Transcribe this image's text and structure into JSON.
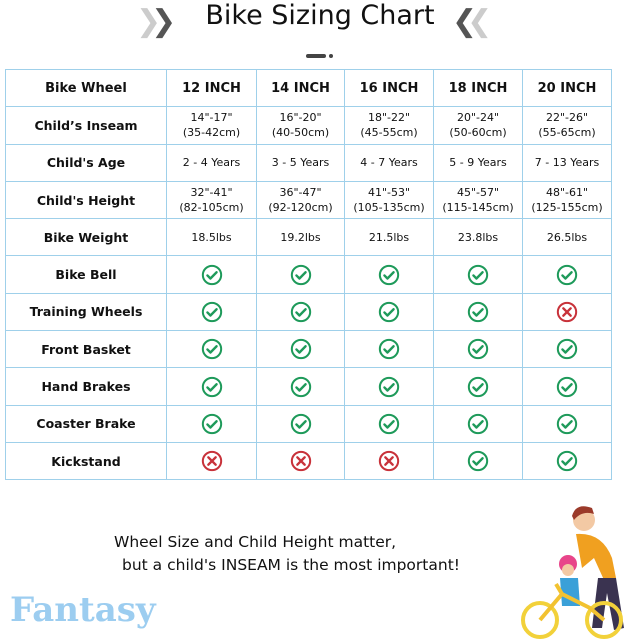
{
  "title": "Bike Sizing Chart",
  "colors": {
    "check": "#1e9a5a",
    "cross": "#c8323a",
    "grid": "#9fd0ea",
    "logo": "#9ccdf0"
  },
  "table": {
    "header": [
      "Bike Wheel",
      "12 INCH",
      "14 INCH",
      "16 INCH",
      "18 INCH",
      "20 INCH"
    ],
    "text_rows": [
      {
        "label": "Child’s Inseam",
        "values": [
          [
            "14\"-17\"",
            "(35-42cm)"
          ],
          [
            "16\"-20\"",
            "(40-50cm)"
          ],
          [
            "18\"-22\"",
            "(45-55cm)"
          ],
          [
            "20\"-24\"",
            "(50-60cm)"
          ],
          [
            "22\"-26\"",
            "(55-65cm)"
          ]
        ]
      },
      {
        "label": "Child's Age",
        "values": [
          [
            "2 - 4 Years"
          ],
          [
            "3 - 5 Years"
          ],
          [
            "4 - 7 Years"
          ],
          [
            "5 - 9 Years"
          ],
          [
            "7 - 13 Years"
          ]
        ]
      },
      {
        "label": "Child's Height",
        "values": [
          [
            "32\"-41\"",
            "(82-105cm)"
          ],
          [
            "36\"-47\"",
            "(92-120cm)"
          ],
          [
            "41\"-53\"",
            "(105-135cm)"
          ],
          [
            "45\"-57\"",
            "(115-145cm)"
          ],
          [
            "48\"-61\"",
            "(125-155cm)"
          ]
        ]
      },
      {
        "label": "Bike Weight",
        "values": [
          [
            "18.5lbs"
          ],
          [
            "19.2lbs"
          ],
          [
            "21.5lbs"
          ],
          [
            "23.8lbs"
          ],
          [
            "26.5lbs"
          ]
        ]
      }
    ],
    "feature_rows": [
      {
        "label": "Bike Bell",
        "values": [
          true,
          true,
          true,
          true,
          true
        ]
      },
      {
        "label": "Training Wheels",
        "values": [
          true,
          true,
          true,
          true,
          false
        ]
      },
      {
        "label": "Front Basket",
        "values": [
          true,
          true,
          true,
          true,
          true
        ]
      },
      {
        "label": "Hand Brakes",
        "values": [
          true,
          true,
          true,
          true,
          true
        ]
      },
      {
        "label": "Coaster Brake",
        "values": [
          true,
          true,
          true,
          true,
          true
        ]
      },
      {
        "label": "Kickstand",
        "values": [
          false,
          false,
          false,
          true,
          true
        ]
      }
    ]
  },
  "note": {
    "line1": "Wheel Size and Child Height matter,",
    "line2": "but a child's INSEAM is the most important!"
  },
  "logo": "Fantasy"
}
